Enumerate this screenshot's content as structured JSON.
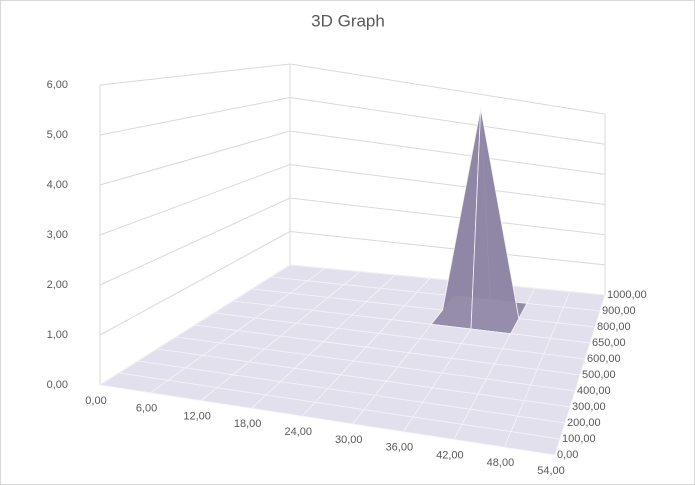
{
  "chart_data": {
    "type": "surface",
    "title": "3D Graph",
    "categories": [
      "0,00",
      "6,00",
      "12,00",
      "18,00",
      "24,00",
      "30,00",
      "36,00",
      "42,00",
      "48,00",
      "54,00"
    ],
    "color": "#8e84a8",
    "series": [
      {
        "name": "0,00",
        "values": [
          0,
          0,
          0,
          0,
          0,
          0,
          0,
          0,
          0,
          0
        ]
      },
      {
        "name": "100,00",
        "values": [
          0,
          0,
          0,
          0,
          0,
          0,
          0,
          0,
          0,
          0
        ]
      },
      {
        "name": "200,00",
        "values": [
          0,
          0,
          0,
          0,
          0,
          0,
          0,
          0,
          0,
          0
        ]
      },
      {
        "name": "300,00",
        "values": [
          0,
          0,
          0,
          0,
          0,
          0,
          0,
          0,
          0,
          0
        ]
      },
      {
        "name": "400,00",
        "values": [
          0,
          0,
          0,
          0,
          0,
          0,
          0,
          0,
          0,
          0
        ]
      },
      {
        "name": "500,00",
        "values": [
          0,
          0,
          0,
          0,
          0,
          0,
          0,
          0,
          0,
          0
        ]
      },
      {
        "name": "600,00",
        "values": [
          0,
          0,
          0,
          0,
          0,
          0,
          0,
          0,
          0,
          0
        ]
      },
      {
        "name": "650,00",
        "values": [
          0,
          0,
          0,
          0,
          0,
          0,
          0,
          0,
          0,
          0
        ]
      },
      {
        "name": "800,00",
        "values": [
          0,
          0,
          0,
          0,
          0,
          0,
          6,
          0,
          0,
          0
        ]
      },
      {
        "name": "900,00",
        "values": [
          0,
          0,
          0,
          0,
          0,
          0,
          0,
          0,
          0,
          0
        ]
      },
      {
        "name": "1000,00",
        "values": [
          0,
          0,
          0,
          0,
          0,
          0,
          0,
          0,
          0,
          0
        ]
      }
    ],
    "zlim": [
      0,
      6
    ],
    "zticks": [
      {
        "value": 0,
        "label": "0,00"
      },
      {
        "value": 1,
        "label": "1,00"
      },
      {
        "value": 2,
        "label": "2,00"
      },
      {
        "value": 3,
        "label": "3,00"
      },
      {
        "value": 4,
        "label": "4,00"
      },
      {
        "value": 5,
        "label": "5,00"
      },
      {
        "value": 6,
        "label": "6,00"
      }
    ],
    "grid": true
  }
}
